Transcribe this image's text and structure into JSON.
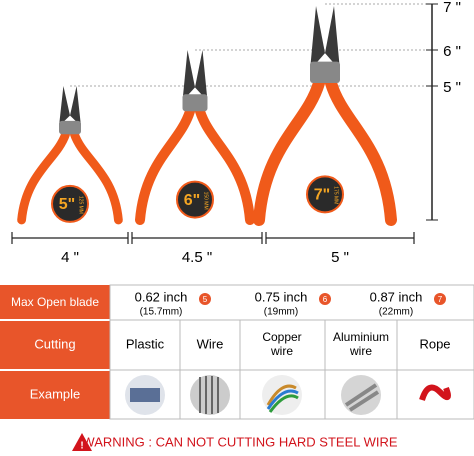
{
  "dimensions": {
    "heights": [
      "7 \"",
      "6 \"",
      "5 \""
    ],
    "widths": [
      "4 \"",
      "4.5 \"",
      "5 \""
    ]
  },
  "pliers": [
    {
      "size": "5\"",
      "mm": "125 MM"
    },
    {
      "size": "6\"",
      "mm": "150 MM"
    },
    {
      "size": "7\"",
      "mm": "175 MM"
    }
  ],
  "table": {
    "rows": [
      {
        "label": "Max Open blade",
        "cells": [
          {
            "inch": "0.62 inch",
            "mm": "(15.7mm)",
            "badge": "5"
          },
          {
            "inch": "0.75 inch",
            "mm": "(19mm)",
            "badge": "6"
          },
          {
            "inch": "0.87 inch",
            "mm": "(22mm)",
            "badge": "7"
          }
        ]
      },
      {
        "label": "Cutting",
        "cells": [
          "Plastic",
          "Wire",
          "Copper wire",
          "Aluminium wire",
          "Rope"
        ]
      },
      {
        "label": "Example"
      }
    ]
  },
  "warning": "WARNING : CAN NOT CUTTING HARD STEEL WIRE"
}
